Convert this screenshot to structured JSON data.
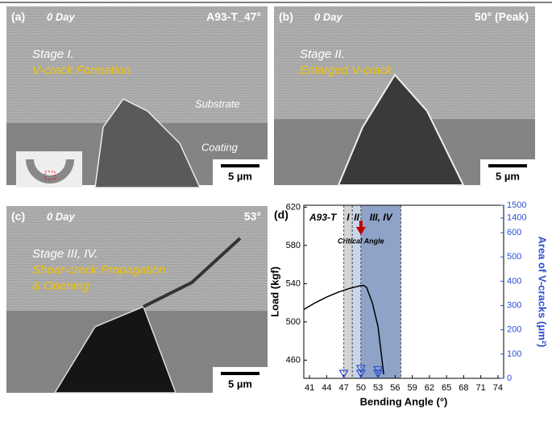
{
  "panels": [
    {
      "label": "(a)",
      "day": "0 Day",
      "corner": "A93-T_47°",
      "stage": "Stage I.",
      "caption": [
        "V-crack Formation"
      ],
      "substrate": "Substrate",
      "coating": "Coating",
      "scale": "5 µm"
    },
    {
      "label": "(b)",
      "day": "0 Day",
      "corner": "50° (Peak)",
      "stage": "Stage II.",
      "caption": [
        "Enlarged V-crack"
      ],
      "scale": "5 µm"
    },
    {
      "label": "(c)",
      "day": "0 Day",
      "corner": "53°",
      "stage": "Stage III, IV.",
      "caption": [
        "Shear-crack Propagation",
        "& Opening"
      ],
      "scale": "5 µm"
    }
  ],
  "chart_data": {
    "type": "line",
    "label": "(d)",
    "annotation": "A93-T",
    "critical": "Critical Angle",
    "critical_x": 50,
    "x_label": "Bending Angle (°)",
    "y_label": "Load (kgf)",
    "y2_label": "Area of V-cracks (μm²)",
    "xlim": [
      40,
      75
    ],
    "xticks": [
      41,
      44,
      47,
      50,
      53,
      56,
      59,
      62,
      65,
      68,
      71,
      74
    ],
    "ylim": [
      441,
      622
    ],
    "yticks": [
      460,
      500,
      540,
      580,
      620
    ],
    "y2lim": [
      0,
      1500
    ],
    "y2break": [
      640,
      1380
    ],
    "y2ticks": [
      0,
      100,
      200,
      300,
      400,
      500,
      600,
      1400,
      1500
    ],
    "regions": [
      {
        "label": "I",
        "from": 47,
        "to": 48.5,
        "color": "#d4d4d4"
      },
      {
        "label": "II",
        "from": 48.5,
        "to": 50,
        "color": "#c9d6ea"
      },
      {
        "label": "III, IV",
        "from": 50,
        "to": 57,
        "color": "#8fa3c8"
      }
    ],
    "series": [
      {
        "type": "line",
        "color": "#000000",
        "x": [
          40,
          42,
          44,
          46,
          48,
          49,
          50,
          50.5,
          51,
          52,
          53,
          53.5,
          54
        ],
        "values": [
          513,
          520,
          526,
          531,
          535,
          536.5,
          538,
          538,
          536,
          520,
          495,
          470,
          445
        ]
      },
      {
        "type": "scatter",
        "axis": "y2",
        "color": "#2a4fd0",
        "x": [
          47,
          50,
          50,
          53,
          53
        ],
        "values": [
          20,
          40,
          20,
          35,
          20
        ]
      }
    ]
  }
}
